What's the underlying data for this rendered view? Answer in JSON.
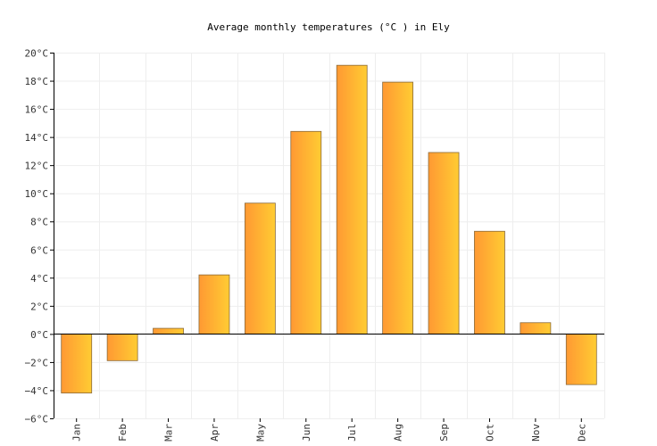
{
  "chart_data": {
    "type": "bar",
    "title": "Average monthly temperatures (°C ) in Ely",
    "xlabel": "",
    "ylabel": "",
    "categories": [
      "Jan",
      "Feb",
      "Mar",
      "Apr",
      "May",
      "Jun",
      "Jul",
      "Aug",
      "Sep",
      "Oct",
      "Nov",
      "Dec"
    ],
    "values": [
      -4.2,
      -1.9,
      0.4,
      4.2,
      9.3,
      14.4,
      19.1,
      17.9,
      12.9,
      7.3,
      0.8,
      -3.6
    ],
    "ylim": [
      -6,
      20
    ],
    "yticks": [
      -6,
      -4,
      -2,
      0,
      2,
      4,
      6,
      8,
      10,
      12,
      14,
      16,
      18,
      20
    ],
    "ytick_labels": [
      "−6°C",
      "−4°C",
      "−2°C",
      "0°C",
      "2°C",
      "4°C",
      "6°C",
      "8°C",
      "10°C",
      "12°C",
      "14°C",
      "16°C",
      "18°C",
      "20°C"
    ],
    "grid": true,
    "legend": "none",
    "colors": {
      "bar_start": "#ff9933",
      "bar_end": "#ffcc33",
      "grid": "#eeeeee"
    }
  }
}
